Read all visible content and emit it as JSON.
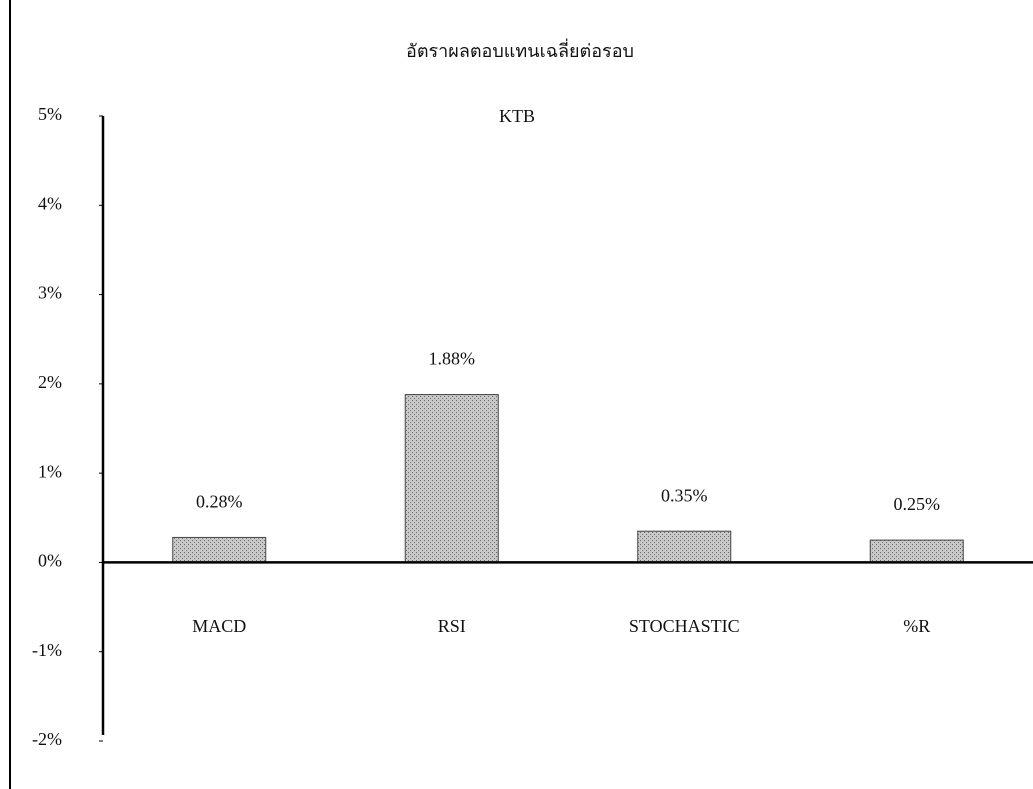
{
  "chart_data": {
    "type": "bar",
    "title": "อัตราผลตอบแทนเฉลี่ยต่อรอบ",
    "subtitle": "KTB",
    "categories": [
      "MACD",
      "RSI",
      "STOCHASTIC",
      "%R"
    ],
    "values": [
      0.28,
      1.88,
      0.35,
      0.25
    ],
    "value_labels": [
      "0.28%",
      "1.88%",
      "0.35%",
      "0.25%"
    ],
    "color": "#b4b4b4",
    "ylim": [
      -2,
      5
    ],
    "yticks": [
      {
        "value": -2,
        "label": "-2%"
      },
      {
        "value": -1,
        "label": "-1%"
      },
      {
        "value": 0,
        "label": "0%"
      },
      {
        "value": 1,
        "label": "1%"
      },
      {
        "value": 2,
        "label": "2%"
      },
      {
        "value": 3,
        "label": "3%"
      },
      {
        "value": 4,
        "label": "4%"
      },
      {
        "value": 5,
        "label": "5%"
      }
    ],
    "grid": false
  }
}
